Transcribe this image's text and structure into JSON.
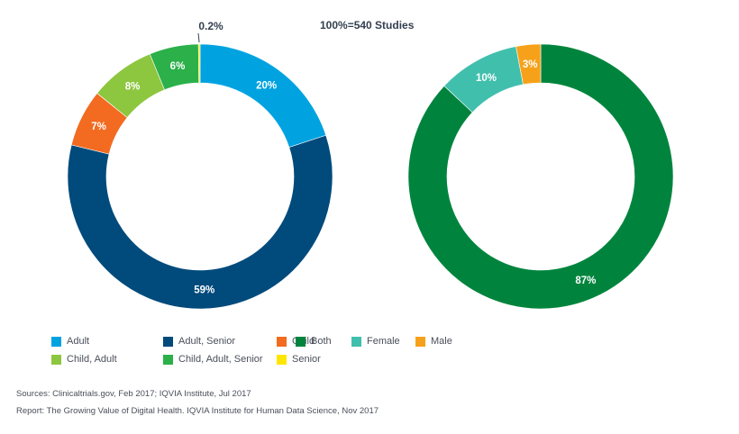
{
  "chart_data": [
    {
      "type": "pie",
      "donut": true,
      "name": "age-group",
      "subtitle": "100%=540 Studies",
      "categories": [
        "Adult",
        "Adult, Senior",
        "Child",
        "Child, Adult",
        "Child, Adult, Senior",
        "Senior"
      ],
      "values": [
        20,
        59,
        7,
        8,
        6,
        0.2
      ],
      "labels": [
        "20%",
        "59%",
        "7%",
        "8%",
        "6%",
        "0.2%"
      ],
      "colors": [
        "#00a3e0",
        "#004a7c",
        "#f26b21",
        "#8dc63f",
        "#2bb04a",
        "#ffe600"
      ],
      "legend": "bottom"
    },
    {
      "type": "pie",
      "donut": true,
      "name": "gender",
      "categories": [
        "Both",
        "Female",
        "Male"
      ],
      "values": [
        87,
        10,
        3
      ],
      "labels": [
        "87%",
        "10%",
        "3%"
      ],
      "colors": [
        "#00843d",
        "#40bfad",
        "#f7a11a"
      ],
      "legend": "bottom"
    }
  ],
  "sources": "Sources: Clinicaltrials.gov, Feb 2017; IQVIA Institute, Jul 2017",
  "report": "Report: The Growing Value of Digital Health. IQVIA Institute for Human Data Science, Nov 2017"
}
